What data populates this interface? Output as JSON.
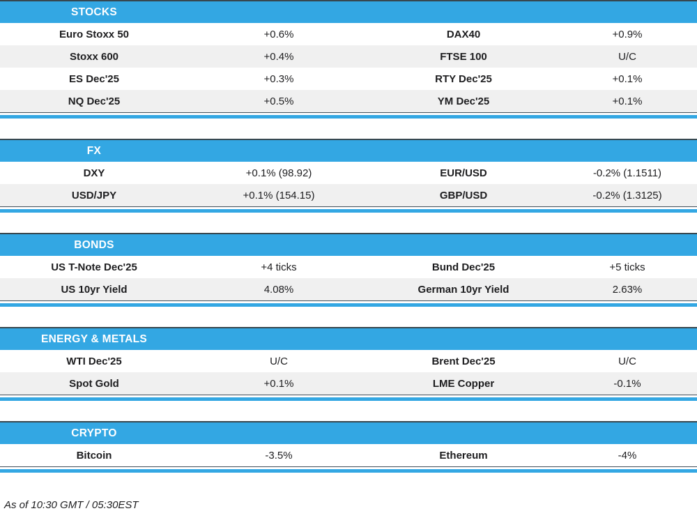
{
  "colors": {
    "header_blue": "#33a7e3",
    "divider_blue": "#33a7e3",
    "dark_hairline": "#37474f",
    "row_alt_gray": "#f0f0f0",
    "header_text": "#ffffff",
    "body_text": "#1d1d1f"
  },
  "sections": [
    {
      "title": "STOCKS",
      "rows": [
        [
          "Euro Stoxx 50",
          "+0.6%",
          "DAX40",
          "+0.9%"
        ],
        [
          "Stoxx 600",
          "+0.4%",
          "FTSE 100",
          "U/C"
        ],
        [
          "ES Dec'25",
          "+0.3%",
          "RTY Dec'25",
          "+0.1%"
        ],
        [
          "NQ Dec'25",
          "+0.5%",
          "YM Dec'25",
          "+0.1%"
        ]
      ]
    },
    {
      "title": "FX",
      "rows": [
        [
          "DXY",
          "+0.1% (98.92)",
          "EUR/USD",
          "-0.2% (1.1511)"
        ],
        [
          "USD/JPY",
          "+0.1% (154.15)",
          "GBP/USD",
          "-0.2% (1.3125)"
        ]
      ]
    },
    {
      "title": "BONDS",
      "rows": [
        [
          "US T-Note Dec'25",
          "+4 ticks",
          "Bund Dec'25",
          "+5 ticks"
        ],
        [
          "US 10yr Yield",
          "4.08%",
          "German 10yr Yield",
          "2.63%"
        ]
      ]
    },
    {
      "title": "ENERGY & METALS",
      "rows": [
        [
          "WTI Dec'25",
          "U/C",
          "Brent Dec'25",
          "U/C"
        ],
        [
          "Spot Gold",
          "+0.1%",
          "LME Copper",
          "-0.1%"
        ]
      ]
    },
    {
      "title": "CRYPTO",
      "rows": [
        [
          "Bitcoin",
          "-3.5%",
          "Ethereum",
          "-4%"
        ]
      ]
    }
  ],
  "footer": {
    "as_of": "As of 10:30 GMT / 05:30EST"
  }
}
